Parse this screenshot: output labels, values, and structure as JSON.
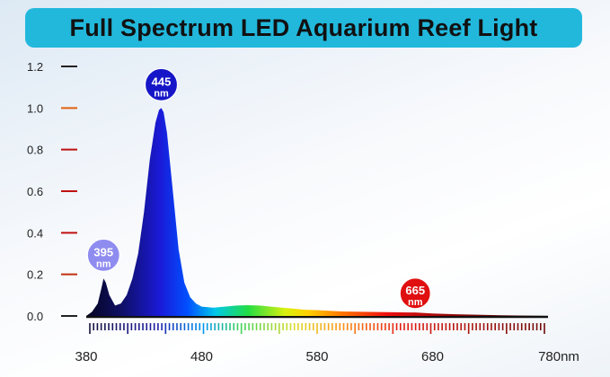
{
  "title": "Full Spectrum LED Aquarium Reef Light",
  "colors": {
    "banner": "#22b8dc",
    "axis": "#111111",
    "peak_395": "#8f8cf0",
    "peak_445": "#1616c8",
    "peak_665": "#e01010"
  },
  "chart_data": {
    "type": "area",
    "title": "Full Spectrum LED Aquarium Reef Light",
    "xlabel": "",
    "ylabel": "",
    "xlim": [
      380,
      780
    ],
    "ylim": [
      0,
      1.2
    ],
    "x_unit": "nm",
    "x_ticks": [
      380,
      480,
      580,
      680,
      780
    ],
    "x_tick_labels": [
      "380",
      "480",
      "580",
      "680",
      "780nm"
    ],
    "y_ticks": [
      0,
      0.2,
      0.4,
      0.6,
      0.8,
      1.0,
      1.2
    ],
    "y_tick_labels": [
      "0.0",
      "0.2",
      "0.4",
      "0.6",
      "0.8",
      "1.0",
      "1.2"
    ],
    "grid": false,
    "series": [
      {
        "x": [
          380,
          385,
          390,
          393,
          395,
          397,
          400,
          405,
          410,
          415,
          420,
          425,
          430,
          435,
          440,
          443,
          445,
          447,
          450,
          455,
          460,
          465,
          470,
          475,
          480,
          490,
          500,
          510,
          520,
          530,
          540,
          550,
          560,
          570,
          580,
          590,
          600,
          620,
          640,
          660,
          665,
          680,
          700,
          740,
          780
        ],
        "y": [
          0.0,
          0.02,
          0.06,
          0.13,
          0.18,
          0.16,
          0.1,
          0.05,
          0.06,
          0.1,
          0.18,
          0.3,
          0.5,
          0.75,
          0.93,
          0.99,
          1.0,
          0.98,
          0.88,
          0.6,
          0.32,
          0.16,
          0.09,
          0.06,
          0.045,
          0.04,
          0.045,
          0.05,
          0.052,
          0.05,
          0.045,
          0.04,
          0.035,
          0.03,
          0.028,
          0.025,
          0.022,
          0.02,
          0.018,
          0.017,
          0.017,
          0.012,
          0.008,
          0.003,
          0.0
        ]
      }
    ],
    "annotations": [
      {
        "x": 395,
        "value": "395",
        "unit": "nm"
      },
      {
        "x": 445,
        "value": "445",
        "unit": "nm"
      },
      {
        "x": 665,
        "value": "665",
        "unit": "nm"
      }
    ]
  }
}
